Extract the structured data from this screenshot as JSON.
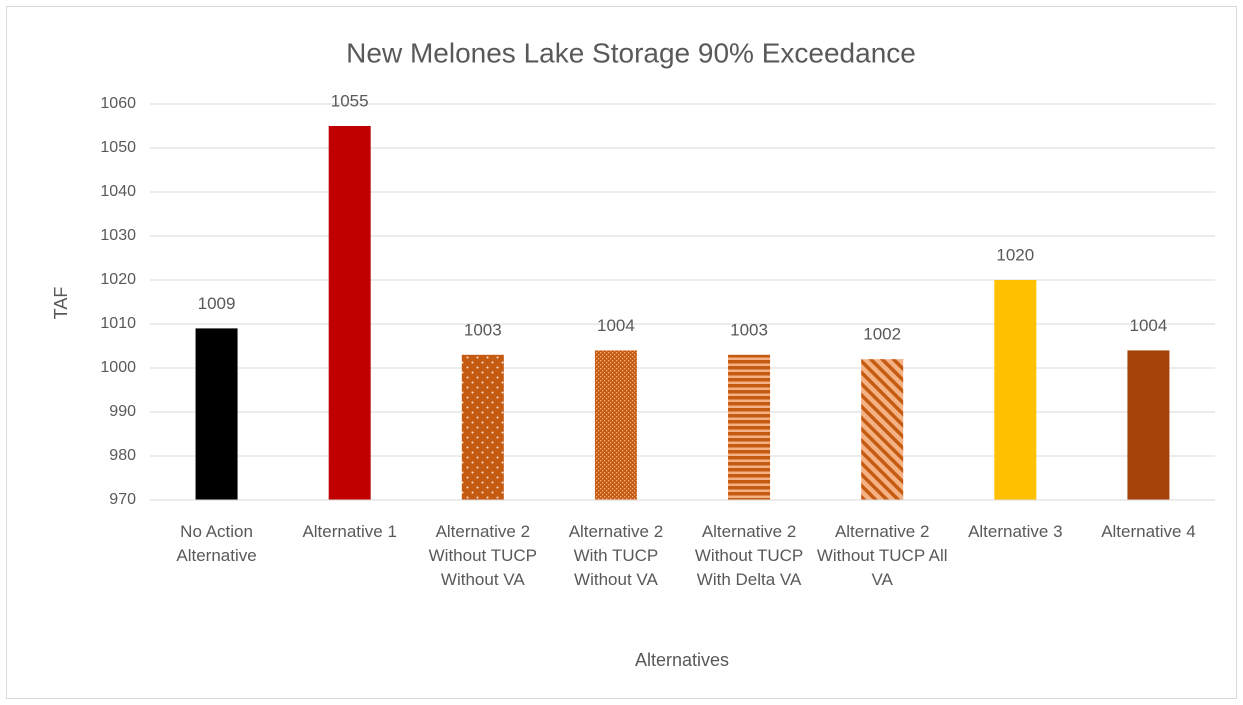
{
  "chart_data": {
    "type": "bar",
    "title": "New Melones Lake Storage 90% Exceedance",
    "x_label": "Alternatives",
    "y_label": "TAF",
    "categories": [
      "No Action Alternative",
      "Alternative 1",
      "Alternative 2 Without TUCP Without VA",
      "Alternative 2 With TUCP Without VA",
      "Alternative 2 Without TUCP With Delta VA",
      "Alternative 2 Without TUCP All VA",
      "Alternative 3",
      "Alternative 4"
    ],
    "values": [
      1009,
      1055,
      1003,
      1004,
      1003,
      1002,
      1020,
      1004
    ],
    "colors": [
      "#000000",
      "#c00000",
      "#c55a11",
      "#c55a11",
      "#c55a11",
      "#c55a11",
      "#ffc000",
      "#a5430a"
    ],
    "patterns": [
      "solid",
      "solid",
      "dots",
      "small-dots",
      "horizontal",
      "diagonal",
      "solid",
      "solid"
    ],
    "ylim": [
      970,
      1060
    ],
    "yticks": [
      970,
      980,
      990,
      1000,
      1010,
      1020,
      1030,
      1040,
      1050,
      1060
    ],
    "grid": true
  }
}
